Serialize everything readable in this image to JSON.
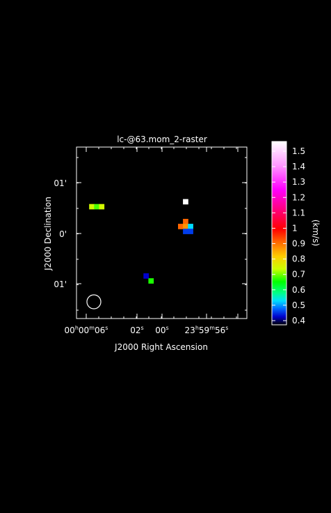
{
  "chart_data": {
    "type": "heatmap",
    "title": "lc-@63.mom_2-raster",
    "xlabel": "J2000 Right Ascension",
    "ylabel": "J2000 Declination",
    "x_ticks": [
      {
        "h": "00",
        "m": "00",
        "s": "06"
      },
      {
        "s": "02"
      },
      {
        "s": "00"
      },
      {
        "h": "23",
        "m": "59",
        "s": "56"
      }
    ],
    "y_ticks": [
      "01'",
      "0'",
      "01'"
    ],
    "colorbar": {
      "label": "(km/s)",
      "min": 0.4,
      "max": 1.55,
      "ticks": [
        "1.5",
        "1.4",
        "1.3",
        "1.2",
        "1.1",
        "1",
        "0.9",
        "0.8",
        "0.7",
        "0.6",
        "0.5",
        "0.4"
      ],
      "stops": [
        {
          "v": 0.4,
          "c": "#000000"
        },
        {
          "v": 0.45,
          "c": "#0000cc"
        },
        {
          "v": 0.5,
          "c": "#0066ff"
        },
        {
          "v": 0.55,
          "c": "#00ddff"
        },
        {
          "v": 0.6,
          "c": "#00ff88"
        },
        {
          "v": 0.67,
          "c": "#00ff00"
        },
        {
          "v": 0.75,
          "c": "#ccff00"
        },
        {
          "v": 0.83,
          "c": "#ffcc00"
        },
        {
          "v": 0.92,
          "c": "#ff6600"
        },
        {
          "v": 1.0,
          "c": "#ff0000"
        },
        {
          "v": 1.1,
          "c": "#ff0066"
        },
        {
          "v": 1.25,
          "c": "#ff00ff"
        },
        {
          "v": 1.4,
          "c": "#ff99ff"
        },
        {
          "v": 1.55,
          "c": "#ffffff"
        }
      ]
    },
    "pixels": [
      {
        "col": 2,
        "row": 22,
        "value": 0.76
      },
      {
        "col": 3,
        "row": 22,
        "value": 0.7
      },
      {
        "col": 4,
        "row": 22,
        "value": 0.76
      },
      {
        "col": 21,
        "row": 23,
        "value": 1.55
      },
      {
        "col": 21,
        "row": 19,
        "value": 0.92
      },
      {
        "col": 20,
        "row": 18,
        "value": 0.92
      },
      {
        "col": 21,
        "row": 18,
        "value": 0.88
      },
      {
        "col": 22,
        "row": 18,
        "value": 0.55
      },
      {
        "col": 21,
        "row": 17,
        "value": 0.48
      },
      {
        "col": 22,
        "row": 17,
        "value": 0.48
      },
      {
        "col": 13,
        "row": 8,
        "value": 0.45
      },
      {
        "col": 14,
        "row": 7,
        "value": 0.68
      }
    ]
  }
}
